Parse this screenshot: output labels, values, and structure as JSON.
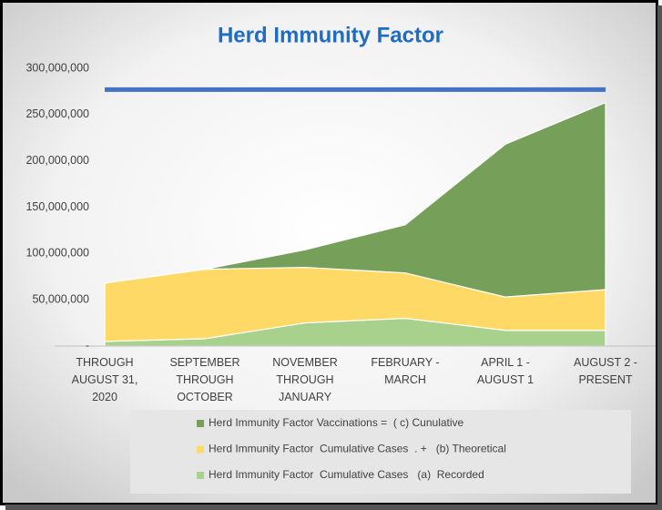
{
  "chart_data": {
    "type": "stacked_area",
    "title": "Herd Immunity Factor",
    "categories": [
      "THROUGH\nAUGUST 31,\n2020",
      "SEPTEMBER\nTHROUGH\nOCTOBER",
      "NOVEMBER\nTHROUGH\nJANUARY",
      "FEBRUARY -\nMARCH",
      "APRIL 1 -\nAUGUST 1",
      "AUGUST 2 -\nPRESENT"
    ],
    "series": [
      {
        "name": "Herd Immunity Factor  Cumulative Cases   (a)  Recorded",
        "color": "#a9d18e",
        "values": [
          5000000,
          8000000,
          25000000,
          30000000,
          17000000,
          17000000
        ]
      },
      {
        "name": "Herd Immunity Factor  Cumulative Cases  . +   (b) Theoretical",
        "color": "#ffd966",
        "values": [
          63000000,
          75000000,
          60000000,
          49000000,
          36000000,
          44000000
        ]
      },
      {
        "name": "Herd Immunity Factor Vaccinations =  ( c) Cunulative",
        "color": "#76a05a",
        "values": [
          0,
          0,
          19000000,
          52000000,
          165000000,
          202000000
        ]
      }
    ],
    "reference_line": {
      "color": "#4472c4",
      "values": [
        277000000,
        277000000,
        277000000,
        277000000,
        277000000,
        277000000
      ]
    },
    "ylim": [
      0,
      300000000
    ],
    "yticks": [
      {
        "value": 0,
        "label": "-"
      },
      {
        "value": 50000000,
        "label": "50,000,000"
      },
      {
        "value": 100000000,
        "label": "100,000,000"
      },
      {
        "value": 150000000,
        "label": "150,000,000"
      },
      {
        "value": 200000000,
        "label": "200,000,000"
      },
      {
        "value": 250000000,
        "label": "250,000,000"
      },
      {
        "value": 300000000,
        "label": "300,000,000"
      }
    ],
    "grid": false
  }
}
